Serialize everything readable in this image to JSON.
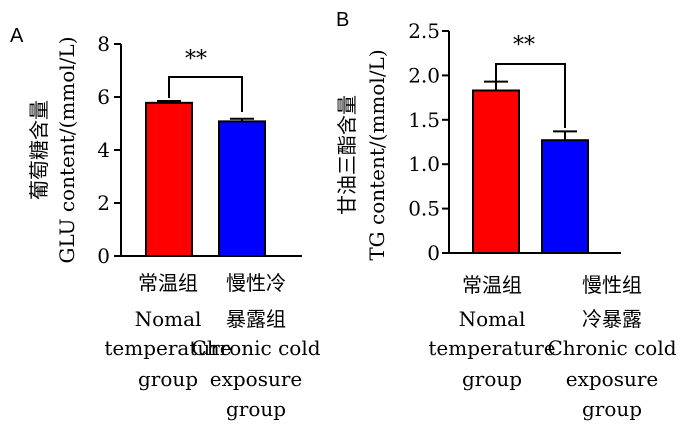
{
  "chart_data": [
    {
      "type": "bar",
      "panel": "A",
      "ylabel_cn": "葡萄糖含量",
      "ylabel_en": "GLU content/(mmol/L)",
      "ylim": [
        0,
        8
      ],
      "yticks": [
        0,
        2,
        4,
        6,
        8
      ],
      "categories": [
        {
          "lines": [
            "常温组",
            "Nomal",
            "temperature",
            "group"
          ]
        },
        {
          "lines": [
            "慢性冷",
            "暴露组",
            "Chronic cold",
            "exposure",
            "group"
          ]
        }
      ],
      "values": [
        5.78,
        5.08
      ],
      "errors": [
        0.07,
        0.1
      ],
      "colors": [
        "#ff0000",
        "#0000ff"
      ],
      "significance": "**"
    },
    {
      "type": "bar",
      "panel": "B",
      "ylabel_cn": "甘油三酯含量",
      "ylabel_en": "TG content/(mmol/L)",
      "ylim": [
        0,
        2.5
      ],
      "yticks": [
        "0",
        "0.5",
        "1.0",
        "1.5",
        "2.0",
        "2.5"
      ],
      "categories": [
        {
          "lines": [
            "常温组",
            "Nomal",
            "temperature",
            "group"
          ]
        },
        {
          "lines": [
            "慢性组",
            "冷暴露",
            "Chronic cold",
            "exposure",
            "group"
          ]
        }
      ],
      "values": [
        1.83,
        1.27
      ],
      "errors": [
        0.1,
        0.1
      ],
      "colors": [
        "#ff0000",
        "#0000ff"
      ],
      "significance": "**"
    }
  ]
}
